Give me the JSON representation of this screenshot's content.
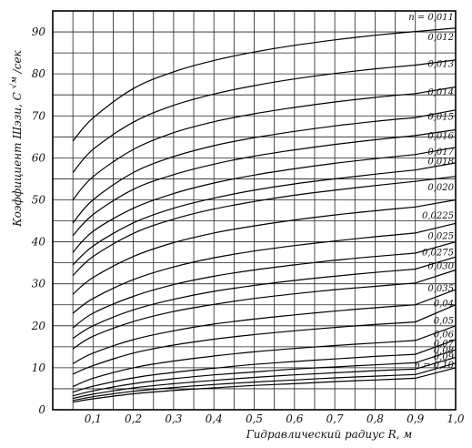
{
  "chart_data": {
    "type": "line",
    "title": "",
    "xlabel": "Гидравлический радиус R, м",
    "ylabel": "Коэффициент Шэзи, C √м/сек",
    "ylabel_parts": {
      "text": "Коэффициент Шэзи, С",
      "unit_radical": "√м",
      "unit_rest": "/сек"
    },
    "xlim": [
      0,
      1.0
    ],
    "ylim": [
      0,
      95
    ],
    "x_ticks": [
      "0,1",
      "0,2",
      "0,3",
      "0,4",
      "0,5",
      "0,6",
      "0,7",
      "0,8",
      "0,9",
      "1,0"
    ],
    "x_tick_values": [
      0.1,
      0.2,
      0.3,
      0.4,
      0.5,
      0.6,
      0.7,
      0.8,
      0.9,
      1.0
    ],
    "y_ticks": [
      "0",
      "10",
      "20",
      "30",
      "40",
      "50",
      "60",
      "70",
      "80",
      "90"
    ],
    "y_tick_values": [
      0,
      10,
      20,
      30,
      40,
      50,
      60,
      70,
      80,
      90
    ],
    "grid": true,
    "x": [
      0.05,
      0.1,
      0.2,
      0.3,
      0.4,
      0.5,
      0.6,
      0.7,
      0.8,
      0.9,
      1.0
    ],
    "series": [
      {
        "name": "n = 0,011",
        "values": [
          64.0,
          69.5,
          76.5,
          80.5,
          83.2,
          85.2,
          86.8,
          88.1,
          89.2,
          90.1,
          90.9
        ]
      },
      {
        "name": "0,012",
        "values": [
          56.5,
          62.0,
          68.5,
          72.5,
          75.2,
          77.2,
          78.8,
          80.1,
          81.2,
          82.1,
          83.3
        ]
      },
      {
        "name": "0,013",
        "values": [
          50.0,
          55.5,
          62.0,
          66.0,
          68.6,
          70.5,
          72.0,
          73.3,
          74.4,
          75.3,
          76.9
        ]
      },
      {
        "name": "0,014",
        "values": [
          44.5,
          50.0,
          56.5,
          60.3,
          62.9,
          64.8,
          66.3,
          67.6,
          68.7,
          69.6,
          71.4
        ]
      },
      {
        "name": "0,015",
        "values": [
          41.5,
          46.5,
          52.5,
          56.0,
          58.5,
          60.4,
          61.9,
          63.2,
          64.3,
          65.3,
          66.7
        ]
      },
      {
        "name": "0,016",
        "values": [
          37.5,
          42.5,
          48.0,
          51.5,
          54.0,
          55.9,
          57.4,
          58.7,
          59.8,
          60.8,
          62.5
        ]
      },
      {
        "name": "0,017",
        "values": [
          34.5,
          39.0,
          44.5,
          48.0,
          50.4,
          52.3,
          53.8,
          55.0,
          56.1,
          57.1,
          58.8
        ]
      },
      {
        "name": "0,018",
        "values": [
          32.0,
          36.5,
          42.0,
          45.4,
          47.8,
          49.6,
          51.1,
          52.3,
          53.4,
          54.4,
          55.6
        ]
      },
      {
        "name": "0,020",
        "values": [
          27.5,
          31.5,
          36.5,
          39.8,
          42.1,
          43.8,
          45.2,
          46.4,
          47.4,
          48.3,
          50.0
        ]
      },
      {
        "name": "0,0225",
        "values": [
          23.0,
          26.5,
          31.0,
          34.0,
          36.2,
          37.8,
          39.1,
          40.2,
          41.2,
          42.1,
          44.4
        ]
      },
      {
        "name": "0,025",
        "values": [
          19.5,
          23.0,
          27.0,
          29.8,
          31.8,
          33.3,
          34.5,
          35.6,
          36.5,
          37.3,
          40.0
        ]
      },
      {
        "name": "0,0275",
        "values": [
          17.0,
          20.0,
          23.8,
          26.3,
          28.2,
          29.6,
          30.8,
          31.8,
          32.7,
          33.5,
          36.4
        ]
      },
      {
        "name": "0,030",
        "values": [
          14.5,
          17.5,
          21.0,
          23.4,
          25.1,
          26.5,
          27.6,
          28.6,
          29.4,
          30.2,
          33.3
        ]
      },
      {
        "name": "0,035",
        "values": [
          11.0,
          13.5,
          16.7,
          18.8,
          20.4,
          21.6,
          22.6,
          23.5,
          24.3,
          25.0,
          28.6
        ]
      },
      {
        "name": "0,04",
        "values": [
          8.5,
          10.5,
          13.5,
          15.4,
          16.8,
          17.9,
          18.8,
          19.6,
          20.3,
          20.9,
          25.0
        ]
      },
      {
        "name": "0,05",
        "values": [
          5.5,
          7.5,
          10.0,
          11.6,
          12.8,
          13.8,
          14.6,
          15.3,
          15.9,
          16.5,
          20.0
        ]
      },
      {
        "name": "0,06",
        "values": [
          4.2,
          5.6,
          7.6,
          8.9,
          9.9,
          10.8,
          11.5,
          12.1,
          12.7,
          13.2,
          16.7
        ]
      },
      {
        "name": "0,07",
        "values": [
          3.3,
          4.5,
          6.2,
          7.4,
          8.3,
          9.0,
          9.7,
          10.2,
          10.7,
          11.2,
          14.3
        ]
      },
      {
        "name": "0,08",
        "values": [
          2.7,
          3.7,
          5.2,
          6.2,
          7.0,
          7.7,
          8.3,
          8.8,
          9.3,
          9.7,
          12.5
        ]
      },
      {
        "name": "0,09",
        "values": [
          2.2,
          3.1,
          4.4,
          5.3,
          6.0,
          6.6,
          7.1,
          7.6,
          8.0,
          8.4,
          11.1
        ]
      },
      {
        "name": "n = 0,10",
        "values": [
          1.8,
          2.6,
          3.8,
          4.6,
          5.2,
          5.8,
          6.2,
          6.7,
          7.1,
          7.5,
          10.0
        ]
      }
    ],
    "curve_labels": [
      "n = 0,011",
      "0,012",
      "0,013",
      "0,014",
      "0,015",
      "0,016",
      "0,017",
      "0,018",
      "0,020",
      "0,0225",
      "0,025",
      "0,0275",
      "0,030",
      "0,035",
      "0,04",
      "0,05",
      "0,06",
      "0,07",
      "0,08",
      "0,09",
      "n = 0,10"
    ],
    "curve_label_values": [
      93.5,
      88.7,
      82.3,
      75.6,
      69.7,
      65.2,
      61.4,
      59.1,
      52.9,
      46.2,
      41.3,
      37.4,
      34.2,
      28.8,
      25.3,
      21.1,
      17.9,
      15.7,
      14.1,
      12.6,
      10.6
    ]
  }
}
